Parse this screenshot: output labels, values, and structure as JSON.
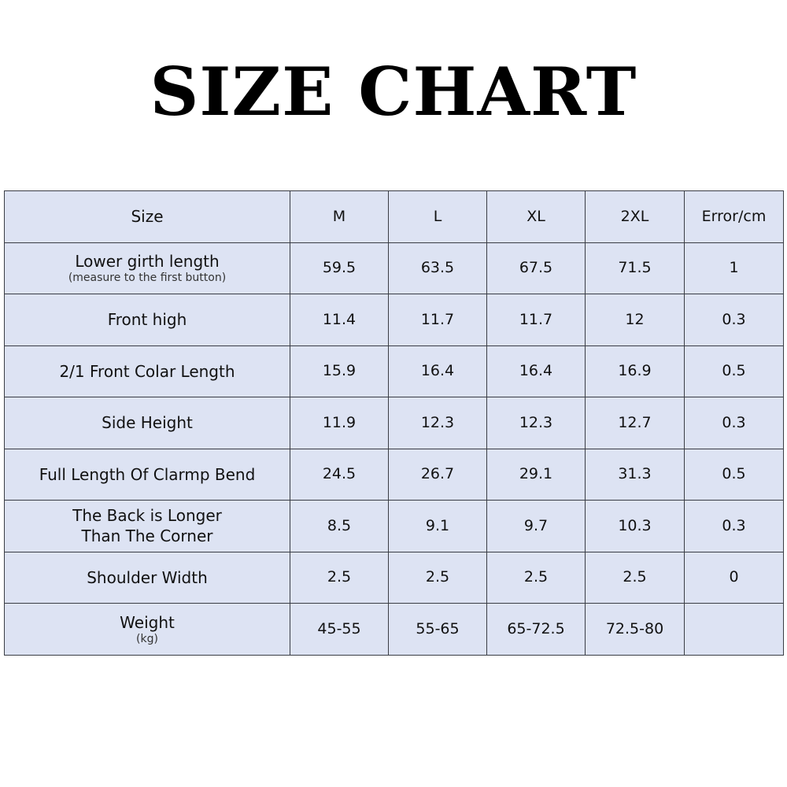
{
  "title": "SIZE CHART",
  "colors": {
    "cell_background": "#dde3f3",
    "border": "#3a3d45",
    "text": "#111111"
  },
  "table": {
    "header": [
      "Size",
      "M",
      "L",
      "XL",
      "2XL",
      "Error/cm"
    ],
    "rows": [
      {
        "label": "Lower girth length",
        "sub": "(measure to the first button)",
        "values": [
          "59.5",
          "63.5",
          "67.5",
          "71.5",
          "1"
        ]
      },
      {
        "label": "Front high",
        "values": [
          "11.4",
          "11.7",
          "11.7",
          "12",
          "0.3"
        ]
      },
      {
        "label": "2/1 Front Colar Length",
        "values": [
          "15.9",
          "16.4",
          "16.4",
          "16.9",
          "0.5"
        ]
      },
      {
        "label": "Side Height",
        "values": [
          "11.9",
          "12.3",
          "12.3",
          "12.7",
          "0.3"
        ]
      },
      {
        "label": "Full Length Of Clarmp Bend",
        "values": [
          "24.5",
          "26.7",
          "29.1",
          "31.3",
          "0.5"
        ]
      },
      {
        "label": "The Back is Longer\nThan The Corner",
        "values": [
          "8.5",
          "9.1",
          "9.7",
          "10.3",
          "0.3"
        ]
      },
      {
        "label": "Shoulder Width",
        "values": [
          "2.5",
          "2.5",
          "2.5",
          "2.5",
          "0"
        ]
      },
      {
        "label": "Weight",
        "sub": "(kg)",
        "values": [
          "45-55",
          "55-65",
          "65-72.5",
          "72.5-80",
          ""
        ]
      }
    ]
  }
}
